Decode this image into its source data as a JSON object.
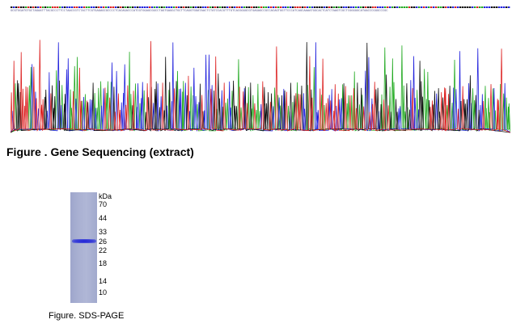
{
  "sequencing": {
    "caption": "Figure . Gene Sequencing (extract)",
    "base_colors": {
      "A": "#22aa22",
      "C": "#2222dd",
      "G": "#111111",
      "T": "#dd2222"
    }
  },
  "sds_page": {
    "caption": "Figure. SDS-PAGE",
    "unit_label": "kDa",
    "markers": [
      "70",
      "44",
      "33",
      "26",
      "22",
      "18",
      "14",
      "10"
    ],
    "band_kda": 26,
    "band_color": "#1f22d8"
  }
}
